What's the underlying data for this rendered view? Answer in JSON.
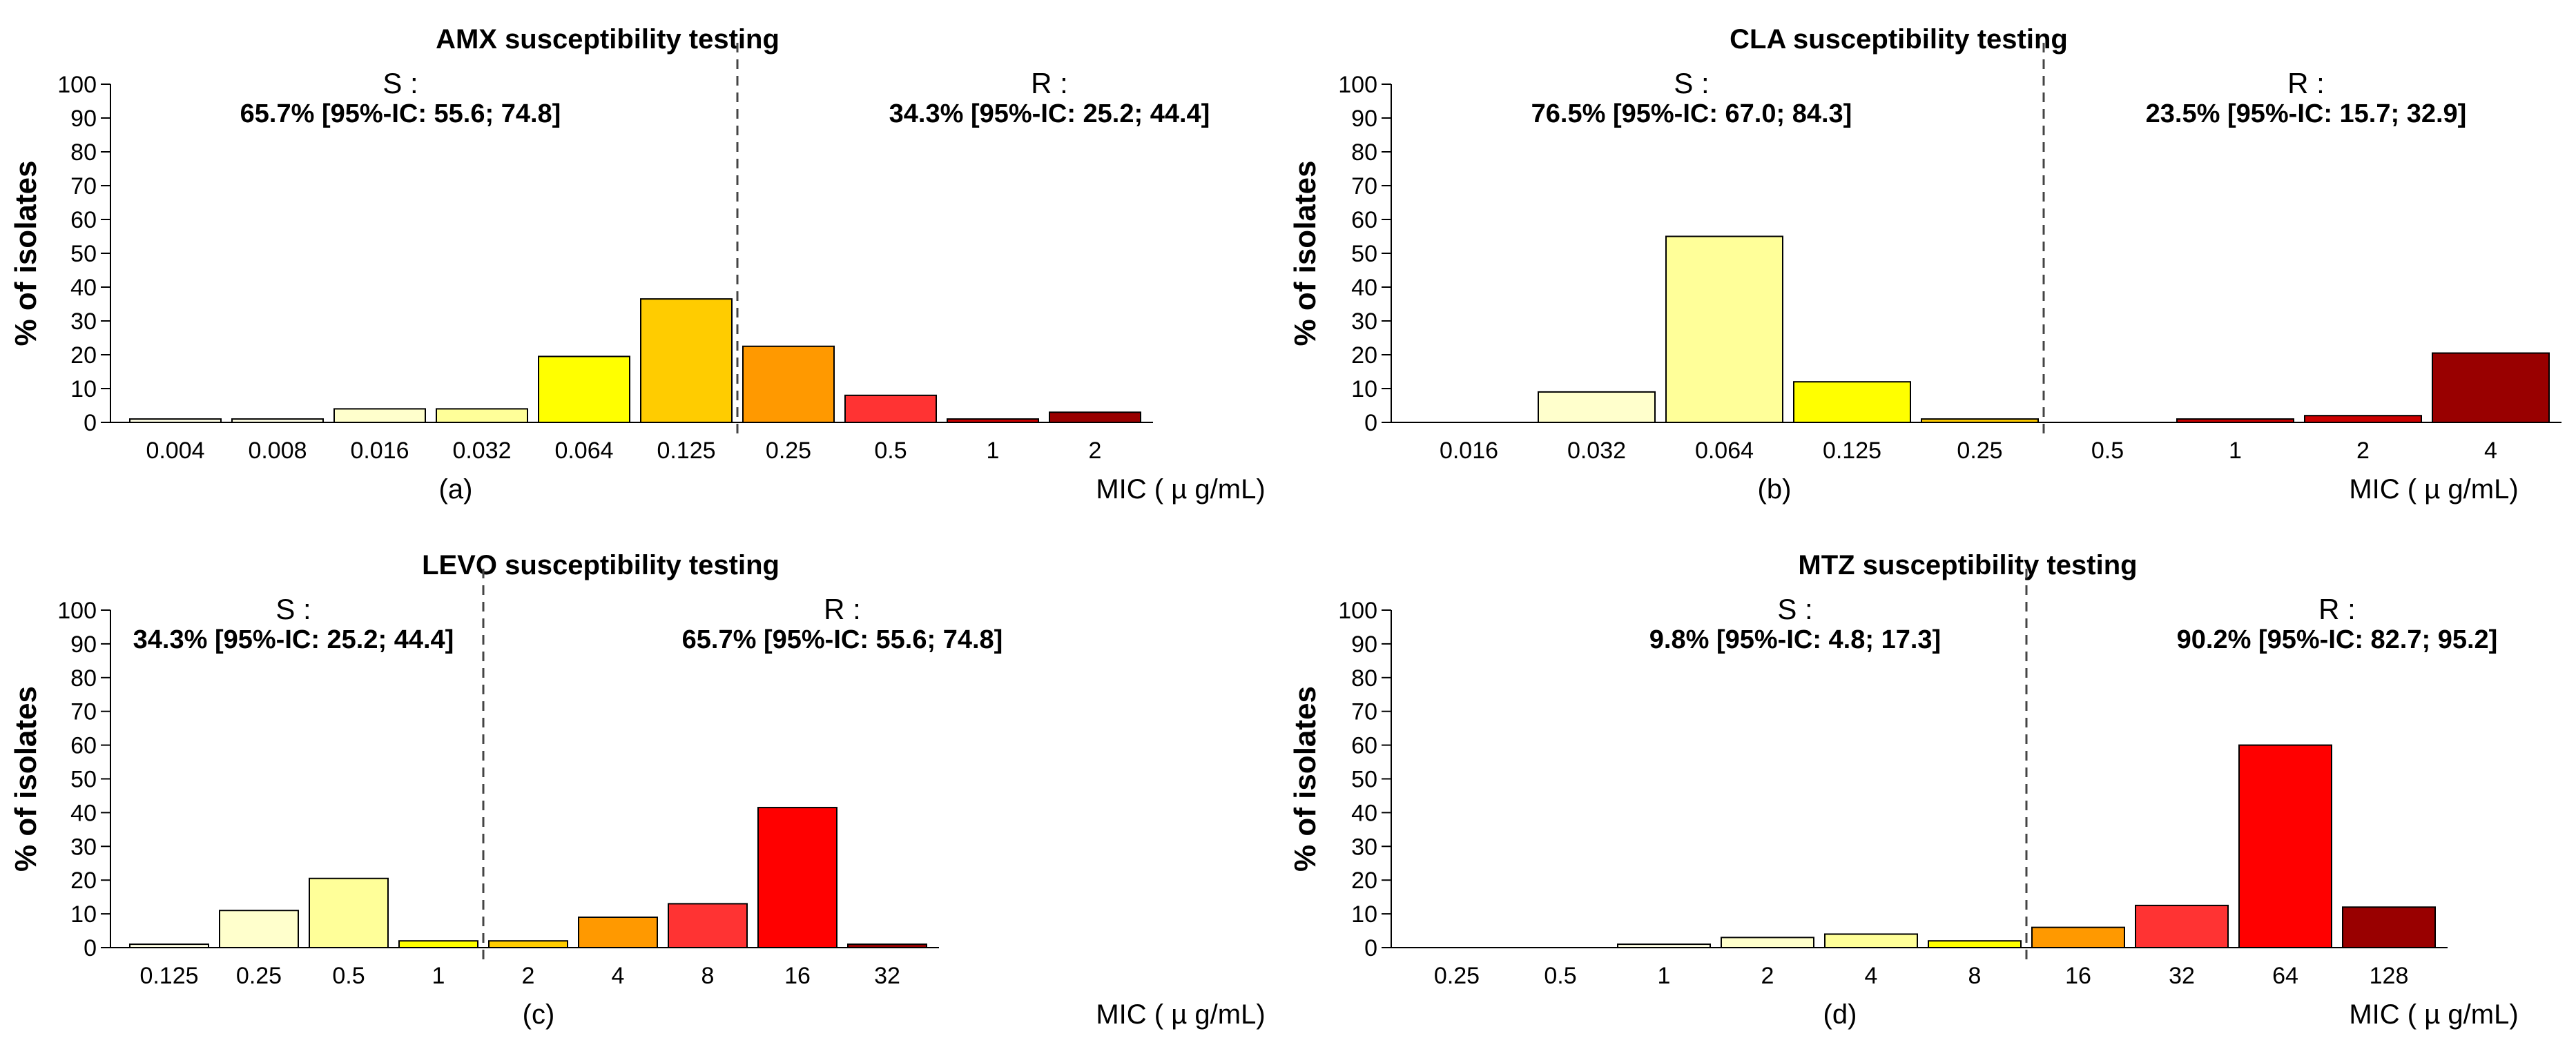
{
  "chart_data": [
    {
      "type": "bar",
      "panel": "(a)",
      "title": "AMX susceptibility testing",
      "ylabel": "% of isolates",
      "xlabel": "MIC ( µ g/mL)",
      "ylim": [
        0,
        100
      ],
      "yticks": [
        "0",
        "10",
        "20",
        "30",
        "40",
        "50",
        "60",
        "70",
        "80",
        "90",
        "100"
      ],
      "categories": [
        "0.004",
        "0.008",
        "0.016",
        "0.032",
        "0.064",
        "0.125",
        "0.25",
        "0.5",
        "1",
        "2"
      ],
      "values": [
        1,
        1,
        4,
        4,
        19.5,
        36.5,
        22.5,
        8,
        1,
        3
      ],
      "colors": [
        "#ffffe6",
        "#ffffe6",
        "#ffffcc",
        "#ffff99",
        "#ffff00",
        "#ffcc00",
        "#ff9900",
        "#ff3333",
        "#cc0000",
        "#990000"
      ],
      "cutoff_after_index": 5,
      "s_label": "S :",
      "s_stat": "65.7% [95%-IC: 55.6; 74.8]",
      "r_label": "R :",
      "r_stat": "34.3% [95%-IC: 25.2; 44.4]"
    },
    {
      "type": "bar",
      "panel": "(b)",
      "title": "CLA susceptibility testing",
      "ylabel": "% of isolates",
      "xlabel": "MIC ( µ g/mL)",
      "ylim": [
        0,
        100
      ],
      "yticks": [
        "0",
        "10",
        "20",
        "30",
        "40",
        "50",
        "60",
        "70",
        "80",
        "90",
        "100"
      ],
      "categories": [
        "0.016",
        "0.032",
        "0.064",
        "0.125",
        "0.25",
        "0.5",
        "1",
        "2",
        "4"
      ],
      "values": [
        0,
        9,
        55,
        12,
        1,
        0,
        1,
        2,
        20.5
      ],
      "colors": [
        "#ffffe6",
        "#ffffcc",
        "#ffff99",
        "#ffff00",
        "#ffcc00",
        "#ff3333",
        "#cc0000",
        "#cc0000",
        "#990000"
      ],
      "cutoff_after_index": 4,
      "s_label": "S :",
      "s_stat": "76.5% [95%-IC: 67.0; 84.3]",
      "r_label": "R :",
      "r_stat": "23.5% [95%-IC: 15.7; 32.9]"
    },
    {
      "type": "bar",
      "panel": "(c)",
      "title": "LEVO susceptibility testing",
      "ylabel": "% of isolates",
      "xlabel": "MIC ( µ g/mL)",
      "ylim": [
        0,
        100
      ],
      "yticks": [
        "0",
        "10",
        "20",
        "30",
        "40",
        "50",
        "60",
        "70",
        "80",
        "90",
        "100"
      ],
      "categories": [
        "0.125",
        "0.25",
        "0.5",
        "1",
        "2",
        "4",
        "8",
        "16",
        "32"
      ],
      "values": [
        1,
        11,
        20.5,
        2,
        2,
        9,
        13,
        41.5,
        1
      ],
      "colors": [
        "#ffffe6",
        "#ffffcc",
        "#ffff99",
        "#ffff00",
        "#ffcc00",
        "#ff9900",
        "#ff3333",
        "#ff0000",
        "#990000"
      ],
      "cutoff_after_index": 3,
      "s_label": "S :",
      "s_stat": "34.3% [95%-IC: 25.2; 44.4]",
      "r_label": "R :",
      "r_stat": "65.7% [95%-IC: 55.6; 74.8]"
    },
    {
      "type": "bar",
      "panel": "(d)",
      "title": "MTZ susceptibility testing",
      "ylabel": "% of isolates",
      "xlabel": "MIC ( µ g/mL)",
      "ylim": [
        0,
        100
      ],
      "yticks": [
        "0",
        "10",
        "20",
        "30",
        "40",
        "50",
        "60",
        "70",
        "80",
        "90",
        "100"
      ],
      "categories": [
        "0.25",
        "0.5",
        "1",
        "2",
        "4",
        "8",
        "16",
        "32",
        "64",
        "128"
      ],
      "values": [
        0,
        0,
        1,
        3,
        4,
        2,
        6,
        12.5,
        60,
        12
      ],
      "colors": [
        "#ffffe6",
        "#ffffe6",
        "#ffffe6",
        "#ffffcc",
        "#ffff99",
        "#ffff00",
        "#ff9900",
        "#ff3333",
        "#ff0000",
        "#990000"
      ],
      "cutoff_after_index": 5,
      "s_label": "S :",
      "s_stat": "9.8% [95%-IC: 4.8; 17.3]",
      "r_label": "R :",
      "r_stat": "90.2% [95%-IC: 82.7; 95.2]"
    }
  ]
}
